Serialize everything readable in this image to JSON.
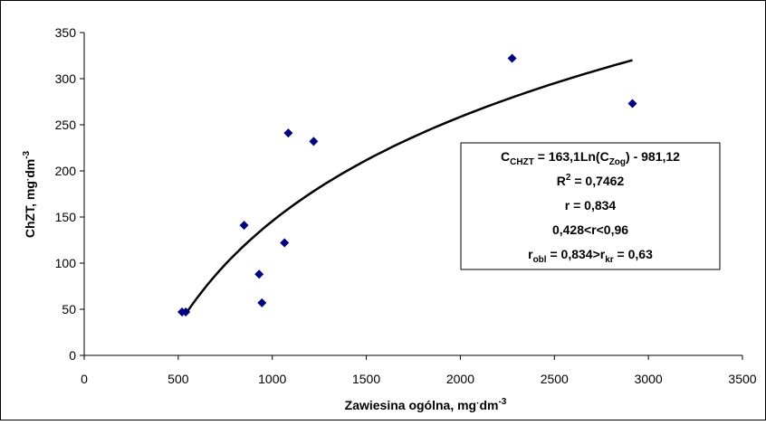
{
  "chart_data": {
    "type": "scatter",
    "xlabel": {
      "main": "Zawiesina ogólna, mg",
      "dot": "·",
      "unit": "dm",
      "exp": "-3"
    },
    "ylabel": {
      "main": "ChZT, mg",
      "dot": "·",
      "unit": "dm",
      "exp": "-3"
    },
    "xlim": [
      0,
      3500
    ],
    "ylim": [
      0,
      350
    ],
    "xticks": [
      0,
      500,
      1000,
      1500,
      2000,
      2500,
      3000,
      3500
    ],
    "yticks": [
      0,
      50,
      100,
      150,
      200,
      250,
      300,
      350
    ],
    "points": [
      {
        "x": 520,
        "y": 47
      },
      {
        "x": 540,
        "y": 47
      },
      {
        "x": 850,
        "y": 141
      },
      {
        "x": 930,
        "y": 88
      },
      {
        "x": 945,
        "y": 57
      },
      {
        "x": 1065,
        "y": 122
      },
      {
        "x": 1085,
        "y": 241
      },
      {
        "x": 1220,
        "y": 232
      },
      {
        "x": 2275,
        "y": 322
      },
      {
        "x": 2915,
        "y": 273
      }
    ],
    "trendline": {
      "type": "log",
      "a": 163.1,
      "b": -981.12,
      "x_from": 540,
      "x_to": 2915
    },
    "marker_color": "#000080",
    "line_color": "#000000",
    "grid": false,
    "legend": "none",
    "annotation": {
      "line1": {
        "c": "C",
        "c_sub": "CHZT",
        "mid": " = 163,1Ln(C",
        "z_sub": "Zog",
        "end": ") - 981,12"
      },
      "line2": {
        "r": "R",
        "sup": "2",
        "rest": " = 0,7462"
      },
      "line3": "r = 0,834",
      "line4": "0,428<r<0,96",
      "line5": {
        "r": "r",
        "obl_sub": "obl",
        "mid": " = 0,834>r",
        "kr_sub": "kr",
        "end": " = 0,63"
      }
    }
  }
}
